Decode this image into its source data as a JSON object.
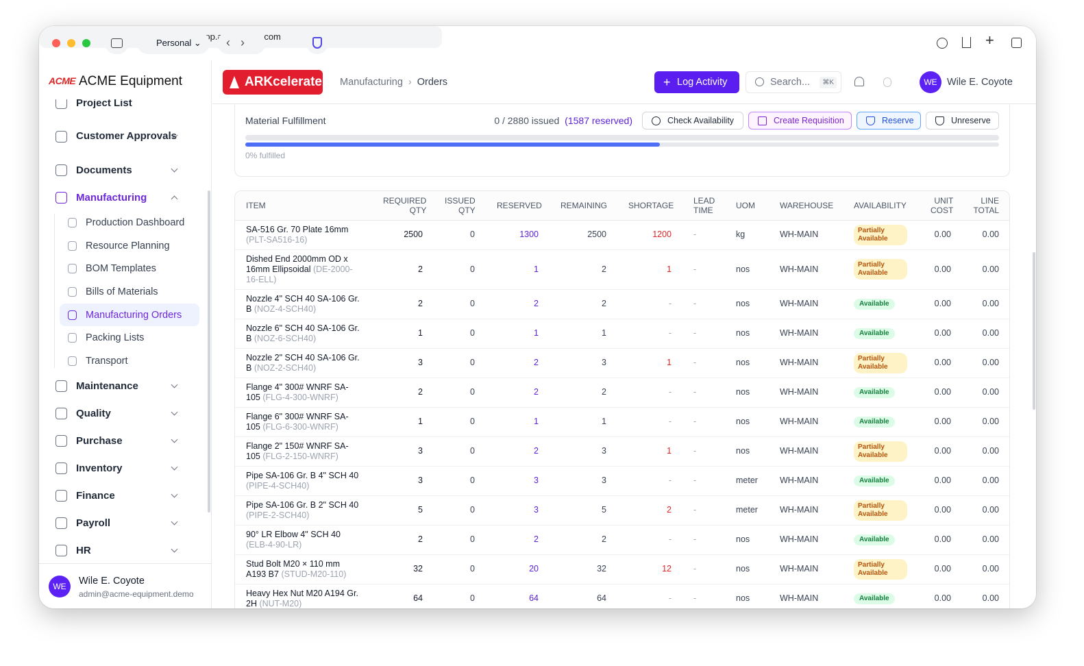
{
  "browser": {
    "profile": "Personal",
    "url": "app.arkcelerate.com"
  },
  "sidebar": {
    "logo": "ACME",
    "company": "ACME Equipment",
    "nav": [
      {
        "label": "Project List"
      },
      {
        "label": "Customer Approvals"
      },
      {
        "label": "Documents"
      },
      {
        "label": "Manufacturing",
        "children": [
          "Production Dashboard",
          "Resource Planning",
          "BOM Templates",
          "Bills of Materials",
          "Manufacturing Orders",
          "Packing Lists",
          "Transport"
        ]
      },
      {
        "label": "Maintenance"
      },
      {
        "label": "Quality"
      },
      {
        "label": "Purchase"
      },
      {
        "label": "Inventory"
      },
      {
        "label": "Finance"
      },
      {
        "label": "Payroll"
      },
      {
        "label": "HR"
      }
    ],
    "user": {
      "initials": "WE",
      "name": "Wile E. Coyote",
      "email": "admin@acme-equipment.demo"
    }
  },
  "header": {
    "brand": "ARKcelerate",
    "breadcrumb": [
      "Manufacturing",
      "Orders"
    ],
    "action": "Log Activity",
    "search": "Search...",
    "shortcut": "⌘K",
    "user": {
      "initials": "WE",
      "name": "Wile E. Coyote"
    }
  },
  "fulfillment": {
    "title": "Material Fulfillment",
    "issued": "0 / 2880 issued",
    "reserved": "(1587 reserved)",
    "buttons": [
      "Check Availability",
      "Create Requisition",
      "Reserve",
      "Unreserve"
    ],
    "progress_label": "0% fulfilled"
  },
  "table": {
    "columns": [
      "ITEM",
      "REQUIRED QTY",
      "ISSUED QTY",
      "RESERVED",
      "REMAINING",
      "SHORTAGE",
      "LEAD TIME",
      "UOM",
      "WAREHOUSE",
      "AVAILABILITY",
      "UNIT COST",
      "LINE TOTAL"
    ],
    "rows": [
      [
        "SA-516 Gr. 70 Plate 16mm",
        "(PLT-SA516-16)",
        "2500",
        "0",
        "1300",
        "2500",
        "1200",
        "-",
        "kg",
        "WH-MAIN",
        "Partially Available",
        "0.00",
        "0.00"
      ],
      [
        "Dished End 2000mm OD x 16mm Ellipsoidal",
        "(DE-2000-16-ELL)",
        "2",
        "0",
        "1",
        "2",
        "1",
        "-",
        "nos",
        "WH-MAIN",
        "Partially Available",
        "0.00",
        "0.00"
      ],
      [
        "Nozzle 4\" SCH 40 SA-106 Gr. B",
        "(NOZ-4-SCH40)",
        "2",
        "0",
        "2",
        "2",
        "-",
        "-",
        "nos",
        "WH-MAIN",
        "Available",
        "0.00",
        "0.00"
      ],
      [
        "Nozzle 6\" SCH 40 SA-106 Gr. B",
        "(NOZ-6-SCH40)",
        "1",
        "0",
        "1",
        "1",
        "-",
        "-",
        "nos",
        "WH-MAIN",
        "Available",
        "0.00",
        "0.00"
      ],
      [
        "Nozzle 2\" SCH 40 SA-106 Gr. B",
        "(NOZ-2-SCH40)",
        "3",
        "0",
        "2",
        "3",
        "1",
        "-",
        "nos",
        "WH-MAIN",
        "Partially Available",
        "0.00",
        "0.00"
      ],
      [
        "Flange 4\" 300# WNRF SA-105",
        "(FLG-4-300-WNRF)",
        "2",
        "0",
        "2",
        "2",
        "-",
        "-",
        "nos",
        "WH-MAIN",
        "Available",
        "0.00",
        "0.00"
      ],
      [
        "Flange 6\" 300# WNRF SA-105",
        "(FLG-6-300-WNRF)",
        "1",
        "0",
        "1",
        "1",
        "-",
        "-",
        "nos",
        "WH-MAIN",
        "Available",
        "0.00",
        "0.00"
      ],
      [
        "Flange 2\" 150# WNRF SA-105",
        "(FLG-2-150-WNRF)",
        "3",
        "0",
        "2",
        "3",
        "1",
        "-",
        "nos",
        "WH-MAIN",
        "Partially Available",
        "0.00",
        "0.00"
      ],
      [
        "Pipe SA-106 Gr. B 4\" SCH 40",
        "(PIPE-4-SCH40)",
        "3",
        "0",
        "3",
        "3",
        "-",
        "-",
        "meter",
        "WH-MAIN",
        "Available",
        "0.00",
        "0.00"
      ],
      [
        "Pipe SA-106 Gr. B 2\" SCH 40",
        "(PIPE-2-SCH40)",
        "5",
        "0",
        "3",
        "5",
        "2",
        "-",
        "meter",
        "WH-MAIN",
        "Partially Available",
        "0.00",
        "0.00"
      ],
      [
        "90° LR Elbow 4\" SCH 40",
        "(ELB-4-90-LR)",
        "2",
        "0",
        "2",
        "2",
        "-",
        "-",
        "nos",
        "WH-MAIN",
        "Available",
        "0.00",
        "0.00"
      ],
      [
        "Stud Bolt M20 × 110 mm A193 B7",
        "(STUD-M20-110)",
        "32",
        "0",
        "20",
        "32",
        "12",
        "-",
        "nos",
        "WH-MAIN",
        "Partially Available",
        "0.00",
        "0.00"
      ],
      [
        "Heavy Hex Nut M20 A194 Gr. 2H",
        "(NUT-M20)",
        "64",
        "0",
        "64",
        "64",
        "-",
        "-",
        "nos",
        "WH-MAIN",
        "Available",
        "0.00",
        "0.00"
      ]
    ]
  }
}
